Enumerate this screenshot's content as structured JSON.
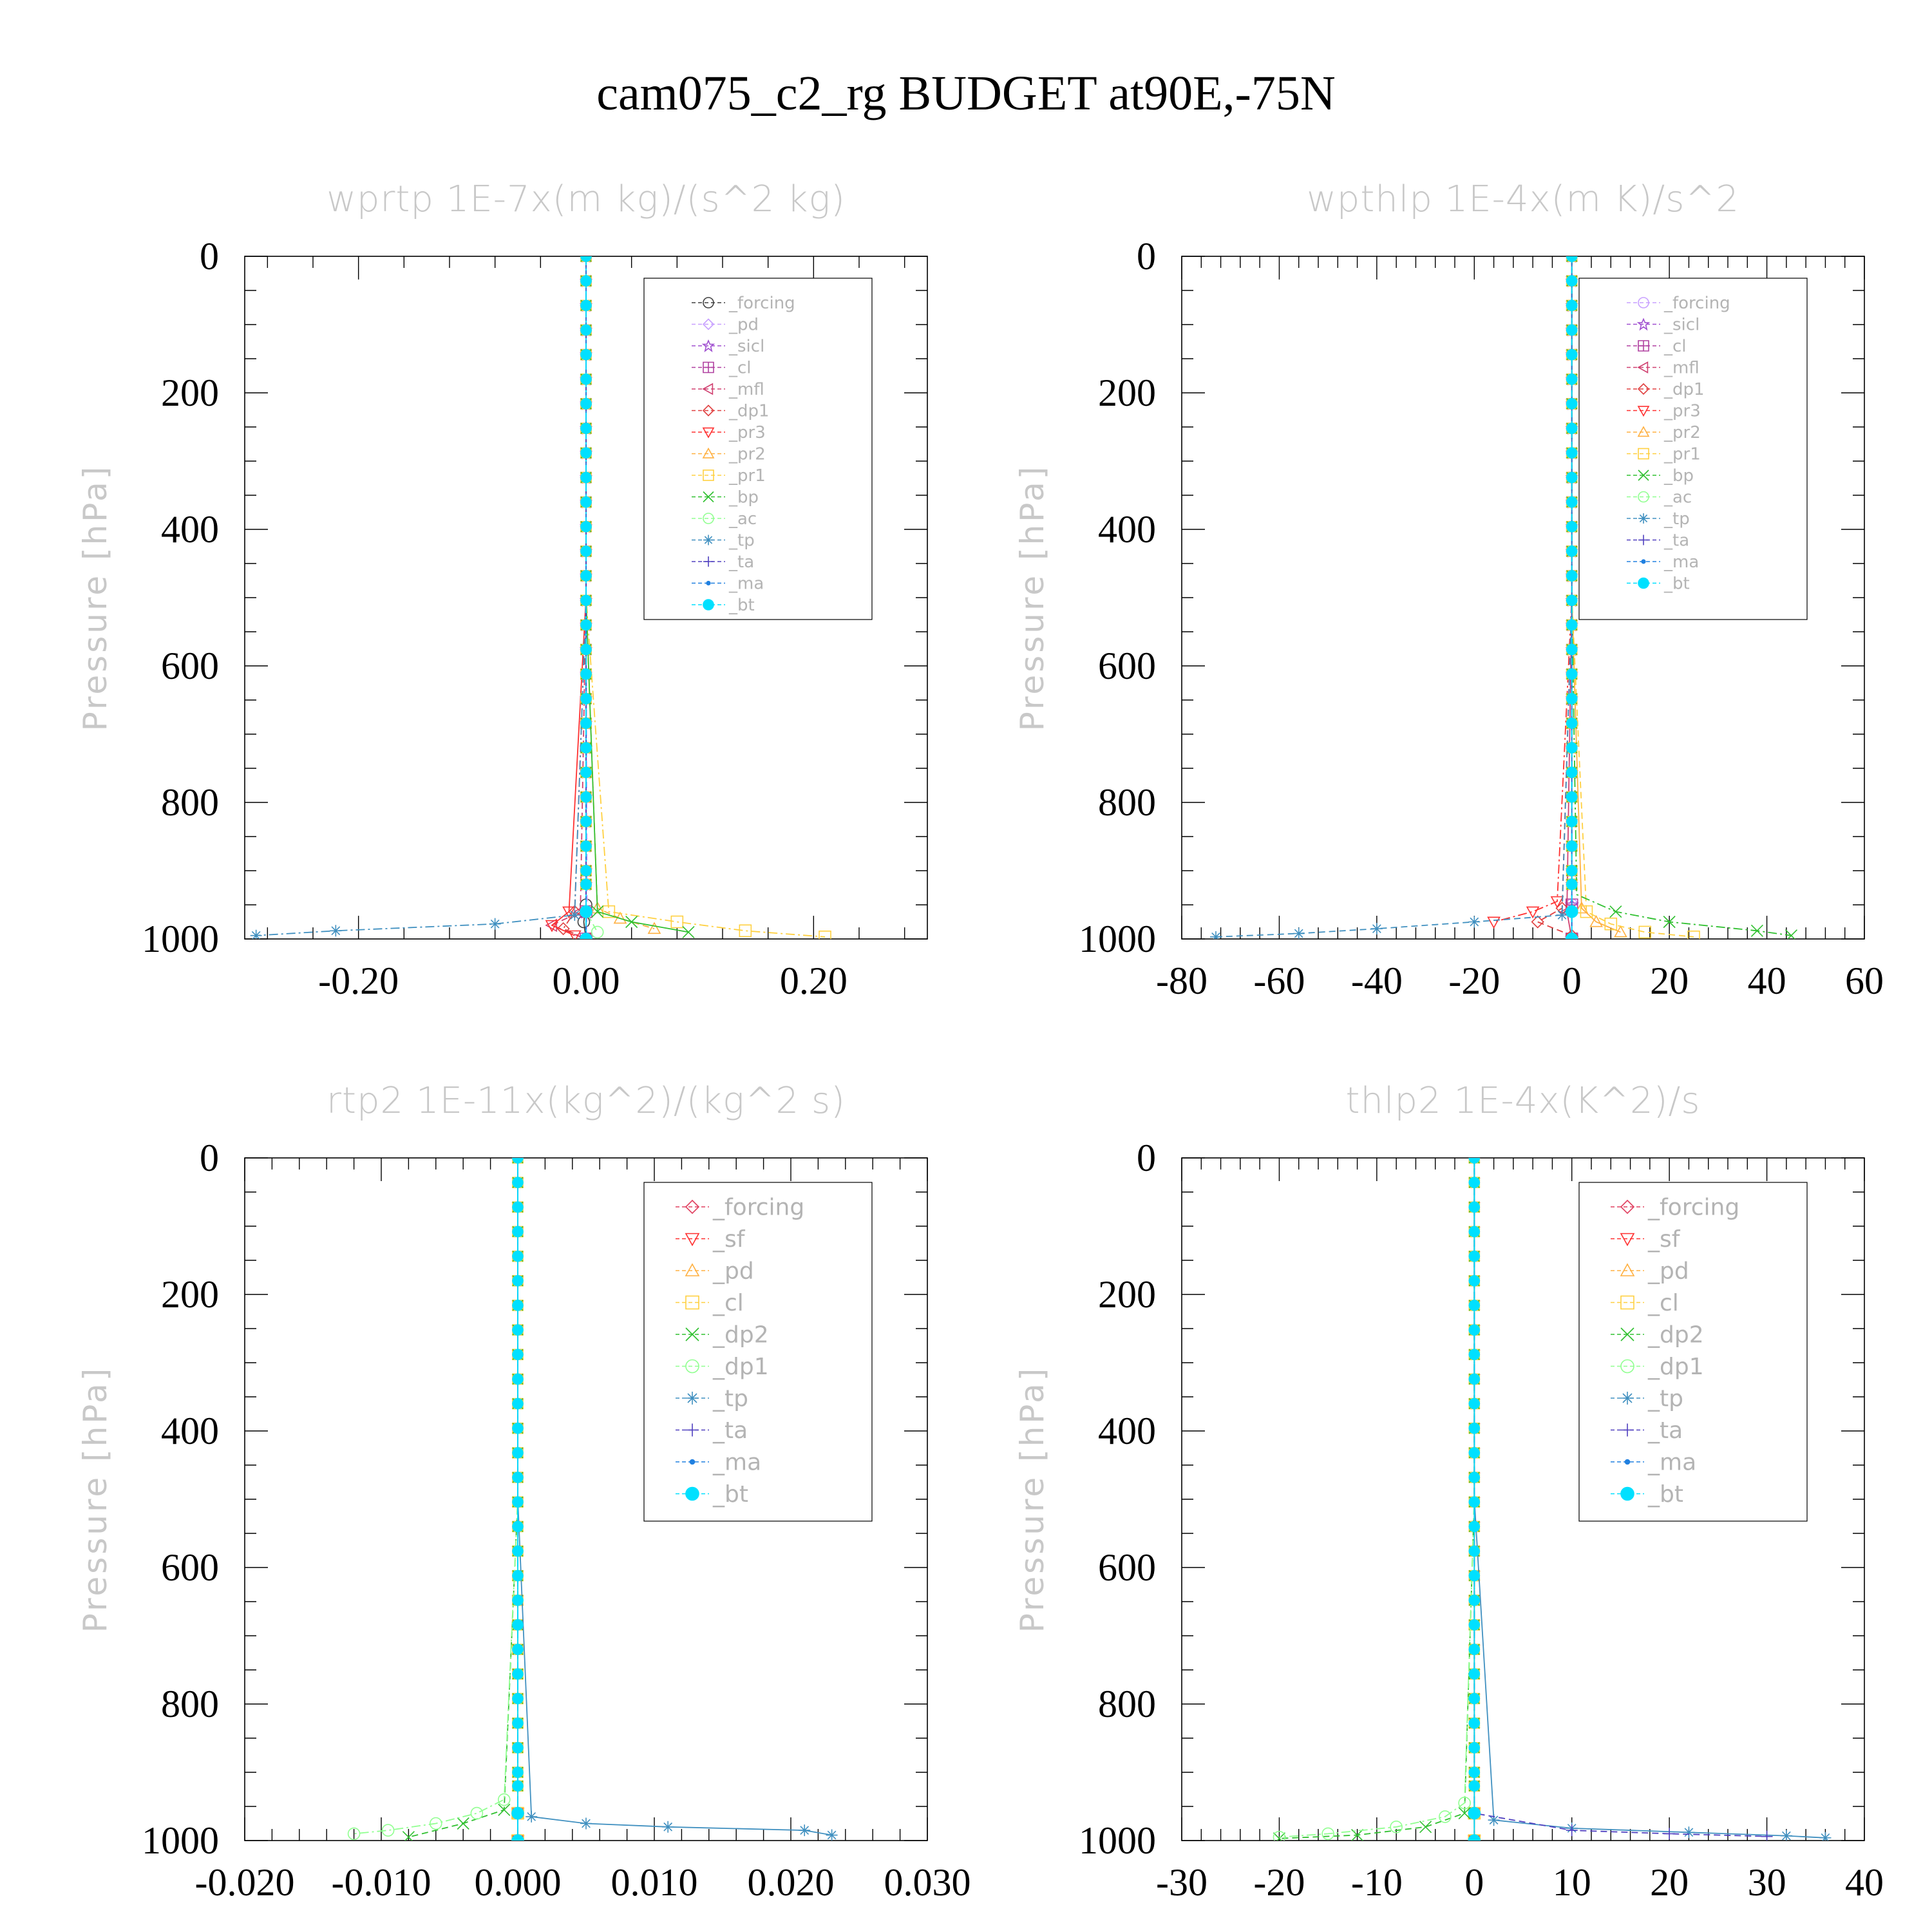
{
  "title": "cam075_c2_rg  BUDGET at90E,-75N",
  "chart_data": [
    {
      "type": "line",
      "title": "wprtp  1E-7x(m kg)/(s^2 kg)",
      "ylabel": "Pressure [hPa]",
      "xlim": [
        -0.3,
        0.3
      ],
      "ylim": [
        1000,
        0
      ],
      "y_reversed": true,
      "x_tick_labels": [
        "-0.20",
        "0.00",
        "0.20"
      ],
      "x_tick_values": [
        -0.2,
        0.0,
        0.2
      ],
      "y_tick_values": [
        0,
        200,
        400,
        600,
        800,
        1000
      ],
      "legend_position": "top-right",
      "legend_entries": [
        "_forcing",
        "_pd",
        "_sicl",
        "_cl",
        "_mfl",
        "_dp1",
        "_pr3",
        "_pr2",
        "_pr1",
        "_bp",
        "_ac",
        "_tp",
        "_ta",
        "_ma",
        "_bt"
      ],
      "series": [
        {
          "name": "_forcing",
          "color": "#404040",
          "marker": "circle",
          "x": [
            0,
            0,
            0,
            -0.002,
            0
          ],
          "y": [
            0,
            500,
            950,
            975,
            1000
          ]
        },
        {
          "name": "_pd",
          "color": "#c8a0ff",
          "marker": "diamond",
          "x": [
            0,
            0,
            0.001,
            0
          ],
          "y": [
            0,
            500,
            960,
            1000
          ]
        },
        {
          "name": "_sicl",
          "color": "#a050d0",
          "marker": "star",
          "x": [
            0,
            0,
            0,
            0
          ],
          "y": [
            0,
            500,
            960,
            1000
          ]
        },
        {
          "name": "_cl",
          "color": "#b040a0",
          "marker": "square-plus",
          "x": [
            0,
            0,
            0,
            0
          ],
          "y": [
            0,
            500,
            960,
            1000
          ]
        },
        {
          "name": "_mfl",
          "color": "#d04070",
          "marker": "triangle-left",
          "x": [
            0,
            0,
            -0.005,
            -0.03,
            0
          ],
          "y": [
            0,
            500,
            960,
            980,
            1000
          ]
        },
        {
          "name": "_dp1",
          "color": "#e04040",
          "marker": "diamond",
          "x": [
            0,
            0,
            -0.01,
            -0.02,
            0
          ],
          "y": [
            0,
            500,
            960,
            985,
            1000
          ]
        },
        {
          "name": "_pr3",
          "color": "#ff3030",
          "marker": "triangle-down",
          "x": [
            0,
            0,
            -0.015,
            -0.03,
            -0.01
          ],
          "y": [
            0,
            500,
            960,
            980,
            995
          ]
        },
        {
          "name": "_pr2",
          "color": "#ffb040",
          "marker": "triangle-up",
          "x": [
            0,
            0,
            0.01,
            0.03,
            0.06
          ],
          "y": [
            0,
            500,
            955,
            970,
            985
          ]
        },
        {
          "name": "_pr1",
          "color": "#ffd040",
          "marker": "square",
          "x": [
            0,
            0,
            0.02,
            0.08,
            0.14,
            0.21
          ],
          "y": [
            0,
            500,
            960,
            975,
            988,
            997
          ]
        },
        {
          "name": "_bp",
          "color": "#30c030",
          "marker": "cross",
          "x": [
            0,
            0,
            0.01,
            0.04,
            0.09
          ],
          "y": [
            0,
            500,
            960,
            975,
            990
          ]
        },
        {
          "name": "_ac",
          "color": "#90ff90",
          "marker": "circle",
          "x": [
            0,
            0,
            0,
            0.01
          ],
          "y": [
            0,
            500,
            960,
            990
          ]
        },
        {
          "name": "_tp",
          "color": "#4090c0",
          "marker": "asterisk",
          "x": [
            0,
            0,
            -0.01,
            -0.08,
            -0.22,
            -0.29
          ],
          "y": [
            0,
            500,
            965,
            978,
            988,
            995
          ]
        },
        {
          "name": "_ta",
          "color": "#5040c0",
          "marker": "plus",
          "x": [
            0,
            0,
            0,
            0
          ],
          "y": [
            0,
            500,
            960,
            1000
          ]
        },
        {
          "name": "_ma",
          "color": "#2080e0",
          "marker": "dot",
          "x": [
            0,
            0,
            0,
            0
          ],
          "y": [
            0,
            500,
            960,
            1000
          ]
        },
        {
          "name": "_bt",
          "color": "#00e0ff",
          "marker": "filled-circle",
          "x": [
            0,
            0,
            0,
            0
          ],
          "y": [
            0,
            500,
            960,
            1000
          ]
        }
      ]
    },
    {
      "type": "line",
      "title": "wpthlp  1E-4x(m K)/s^2",
      "ylabel": "Pressure [hPa]",
      "xlim": [
        -80,
        60
      ],
      "ylim": [
        1000,
        0
      ],
      "y_reversed": true,
      "x_tick_labels": [
        "-80",
        "-60",
        "-40",
        "-20",
        "0",
        "20",
        "40",
        "60"
      ],
      "x_tick_values": [
        -80,
        -60,
        -40,
        -20,
        0,
        20,
        40,
        60
      ],
      "y_tick_values": [
        0,
        200,
        400,
        600,
        800,
        1000
      ],
      "legend_position": "top-right",
      "legend_entries": [
        "_forcing",
        "_sicl",
        "_cl",
        "_mfl",
        "_dp1",
        "_pr3",
        "_pr2",
        "_pr1",
        "_bp",
        "_ac",
        "_tp",
        "_ta",
        "_ma",
        "_bt"
      ],
      "series": [
        {
          "name": "_forcing",
          "color": "#c8a0ff",
          "marker": "circle",
          "x": [
            0,
            0,
            0,
            0
          ],
          "y": [
            0,
            500,
            950,
            1000
          ]
        },
        {
          "name": "_sicl",
          "color": "#a050d0",
          "marker": "star",
          "x": [
            0,
            0,
            0,
            0
          ],
          "y": [
            0,
            500,
            950,
            1000
          ]
        },
        {
          "name": "_cl",
          "color": "#b040a0",
          "marker": "square-plus",
          "x": [
            0,
            0,
            0,
            0
          ],
          "y": [
            0,
            500,
            950,
            1000
          ]
        },
        {
          "name": "_mfl",
          "color": "#d04070",
          "marker": "triangle-left",
          "x": [
            0,
            0,
            -1,
            0
          ],
          "y": [
            0,
            500,
            960,
            1000
          ]
        },
        {
          "name": "_dp1",
          "color": "#e04040",
          "marker": "diamond",
          "x": [
            0,
            0,
            -2,
            -7,
            0
          ],
          "y": [
            0,
            500,
            955,
            975,
            995
          ]
        },
        {
          "name": "_pr3",
          "color": "#ff3030",
          "marker": "triangle-down",
          "x": [
            0,
            0,
            -3,
            -8,
            -16
          ],
          "y": [
            0,
            500,
            945,
            960,
            975
          ]
        },
        {
          "name": "_pr2",
          "color": "#ffb040",
          "marker": "triangle-up",
          "x": [
            0,
            0,
            2,
            5,
            10
          ],
          "y": [
            0,
            500,
            955,
            975,
            990
          ]
        },
        {
          "name": "_pr1",
          "color": "#ffd040",
          "marker": "square",
          "x": [
            0,
            0,
            3,
            8,
            15,
            25
          ],
          "y": [
            0,
            500,
            960,
            978,
            990,
            997
          ]
        },
        {
          "name": "_bp",
          "color": "#30c030",
          "marker": "cross",
          "x": [
            0,
            0,
            1,
            9,
            20,
            38,
            45
          ],
          "y": [
            0,
            500,
            935,
            960,
            975,
            988,
            995
          ]
        },
        {
          "name": "_ac",
          "color": "#90ff90",
          "marker": "circle",
          "x": [
            0,
            0,
            0,
            0
          ],
          "y": [
            0,
            500,
            960,
            1000
          ]
        },
        {
          "name": "_tp",
          "color": "#4090c0",
          "marker": "asterisk",
          "x": [
            0,
            0,
            -2,
            -20,
            -40,
            -56,
            -73
          ],
          "y": [
            0,
            500,
            965,
            975,
            985,
            992,
            997
          ]
        },
        {
          "name": "_ta",
          "color": "#5040c0",
          "marker": "plus",
          "x": [
            0,
            0,
            0,
            0
          ],
          "y": [
            0,
            500,
            960,
            1000
          ]
        },
        {
          "name": "_ma",
          "color": "#2080e0",
          "marker": "dot",
          "x": [
            0,
            0,
            0,
            0
          ],
          "y": [
            0,
            500,
            960,
            1000
          ]
        },
        {
          "name": "_bt",
          "color": "#00e0ff",
          "marker": "filled-circle",
          "x": [
            0,
            0,
            0,
            0
          ],
          "y": [
            0,
            500,
            960,
            1000
          ]
        }
      ]
    },
    {
      "type": "line",
      "title": "rtp2  1E-11x(kg^2)/(kg^2 s)",
      "ylabel": "Pressure [hPa]",
      "xlim": [
        -0.02,
        0.03
      ],
      "ylim": [
        1000,
        0
      ],
      "y_reversed": true,
      "x_tick_labels": [
        "-0.020",
        "-0.010",
        "0.000",
        "0.010",
        "0.020",
        "0.030"
      ],
      "x_tick_values": [
        -0.02,
        -0.01,
        0.0,
        0.01,
        0.02,
        0.03
      ],
      "y_tick_values": [
        0,
        200,
        400,
        600,
        800,
        1000
      ],
      "legend_position": "top-right",
      "legend_entries": [
        "_forcing",
        "_sf",
        "_pd",
        "_cl",
        "_dp2",
        "_dp1",
        "_tp",
        "_ta",
        "_ma",
        "_bt"
      ],
      "series": [
        {
          "name": "_forcing",
          "color": "#e04060",
          "marker": "diamond",
          "x": [
            0,
            0,
            0,
            0
          ],
          "y": [
            0,
            500,
            960,
            1000
          ]
        },
        {
          "name": "_sf",
          "color": "#ff3030",
          "marker": "triangle-down",
          "x": [
            0,
            0,
            0,
            0
          ],
          "y": [
            0,
            500,
            960,
            1000
          ]
        },
        {
          "name": "_pd",
          "color": "#ffb040",
          "marker": "triangle-up",
          "x": [
            0,
            0,
            0,
            0
          ],
          "y": [
            0,
            500,
            960,
            1000
          ]
        },
        {
          "name": "_cl",
          "color": "#ffd040",
          "marker": "square",
          "x": [
            0,
            0,
            0,
            0
          ],
          "y": [
            0,
            500,
            960,
            1000
          ]
        },
        {
          "name": "_dp2",
          "color": "#30c030",
          "marker": "cross",
          "x": [
            0,
            0,
            -0.001,
            -0.004,
            -0.008
          ],
          "y": [
            0,
            500,
            955,
            975,
            995
          ]
        },
        {
          "name": "_dp1",
          "color": "#90ff90",
          "marker": "circle",
          "x": [
            0,
            0,
            -0.001,
            -0.003,
            -0.006,
            -0.0095,
            -0.012
          ],
          "y": [
            0,
            500,
            940,
            960,
            975,
            985,
            990
          ]
        },
        {
          "name": "_tp",
          "color": "#4090c0",
          "marker": "asterisk",
          "x": [
            0,
            0,
            0.001,
            0.005,
            0.011,
            0.021,
            0.023
          ],
          "y": [
            0,
            500,
            965,
            975,
            980,
            985,
            992
          ]
        },
        {
          "name": "_ta",
          "color": "#5040c0",
          "marker": "plus",
          "x": [
            0,
            0,
            0,
            0
          ],
          "y": [
            0,
            500,
            960,
            1000
          ]
        },
        {
          "name": "_ma",
          "color": "#2080e0",
          "marker": "dot",
          "x": [
            0,
            0,
            0,
            0
          ],
          "y": [
            0,
            500,
            960,
            1000
          ]
        },
        {
          "name": "_bt",
          "color": "#00e0ff",
          "marker": "filled-circle",
          "x": [
            0,
            0,
            0,
            0
          ],
          "y": [
            0,
            500,
            960,
            1000
          ]
        }
      ]
    },
    {
      "type": "line",
      "title": "thlp2  1E-4x(K^2)/s",
      "ylabel": "Pressure [hPa]",
      "xlim": [
        -30,
        40
      ],
      "ylim": [
        1000,
        0
      ],
      "y_reversed": true,
      "x_tick_labels": [
        "-30",
        "-20",
        "-10",
        "0",
        "10",
        "20",
        "30",
        "40"
      ],
      "x_tick_values": [
        -30,
        -20,
        -10,
        0,
        10,
        20,
        30,
        40
      ],
      "y_tick_values": [
        0,
        200,
        400,
        600,
        800,
        1000
      ],
      "legend_position": "top-right",
      "legend_entries": [
        "_forcing",
        "_sf",
        "_pd",
        "_cl",
        "_dp2",
        "_dp1",
        "_tp",
        "_ta",
        "_ma",
        "_bt"
      ],
      "series": [
        {
          "name": "_forcing",
          "color": "#e04060",
          "marker": "diamond",
          "x": [
            0,
            0,
            0,
            0
          ],
          "y": [
            0,
            500,
            960,
            1000
          ]
        },
        {
          "name": "_sf",
          "color": "#ff3030",
          "marker": "triangle-down",
          "x": [
            0,
            0,
            0,
            0
          ],
          "y": [
            0,
            500,
            960,
            1000
          ]
        },
        {
          "name": "_pd",
          "color": "#ffb040",
          "marker": "triangle-up",
          "x": [
            0,
            0,
            0,
            0
          ],
          "y": [
            0,
            500,
            960,
            1000
          ]
        },
        {
          "name": "_cl",
          "color": "#ffd040",
          "marker": "square",
          "x": [
            0,
            0,
            0,
            0
          ],
          "y": [
            0,
            500,
            960,
            1000
          ]
        },
        {
          "name": "_dp2",
          "color": "#30c030",
          "marker": "cross",
          "x": [
            0,
            0,
            -1,
            -5,
            -12,
            -20
          ],
          "y": [
            0,
            500,
            960,
            980,
            992,
            997
          ]
        },
        {
          "name": "_dp1",
          "color": "#90ff90",
          "marker": "circle",
          "x": [
            0,
            0,
            -1,
            -3,
            -8,
            -15,
            -20
          ],
          "y": [
            0,
            500,
            945,
            965,
            980,
            990,
            995
          ]
        },
        {
          "name": "_tp",
          "color": "#4090c0",
          "marker": "asterisk",
          "x": [
            0,
            0,
            2,
            10,
            22,
            32,
            36
          ],
          "y": [
            0,
            500,
            970,
            982,
            988,
            993,
            996
          ]
        },
        {
          "name": "_ta",
          "color": "#5040c0",
          "marker": "plus",
          "x": [
            0,
            0,
            0,
            10,
            20,
            30
          ],
          "y": [
            0,
            500,
            960,
            985,
            990,
            994
          ]
        },
        {
          "name": "_ma",
          "color": "#2080e0",
          "marker": "dot",
          "x": [
            0,
            0,
            0,
            0
          ],
          "y": [
            0,
            500,
            960,
            1000
          ]
        },
        {
          "name": "_bt",
          "color": "#00e0ff",
          "marker": "filled-circle",
          "x": [
            0,
            0,
            0,
            0
          ],
          "y": [
            0,
            500,
            960,
            1000
          ]
        }
      ]
    }
  ]
}
